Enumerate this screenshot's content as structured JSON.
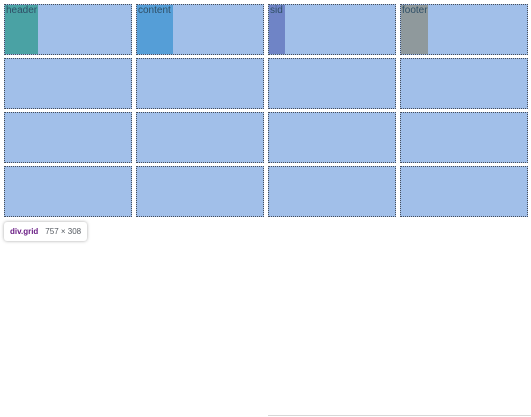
{
  "grid": {
    "items": [
      {
        "label": "header",
        "color": "#4aa2a4"
      },
      {
        "label": "content",
        "color": "#559ed7"
      },
      {
        "label": "sid",
        "color": "#6f84c6"
      },
      {
        "label": "footer",
        "color": "#8f999c"
      }
    ],
    "cell_color": "#a1bfe9",
    "cell_count": 16
  },
  "devtools_badge": {
    "element": "div.grid",
    "dimensions": "757 × 308"
  }
}
